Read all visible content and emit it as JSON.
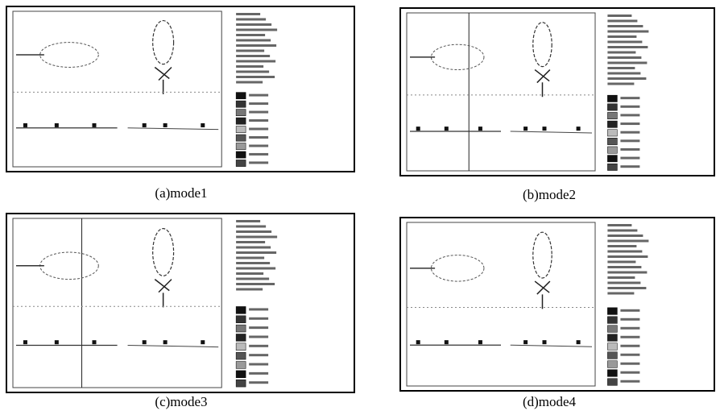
{
  "captions": [
    "(a)mode1",
    "(b)mode2",
    "(c)mode3",
    "(d)mode4"
  ]
}
